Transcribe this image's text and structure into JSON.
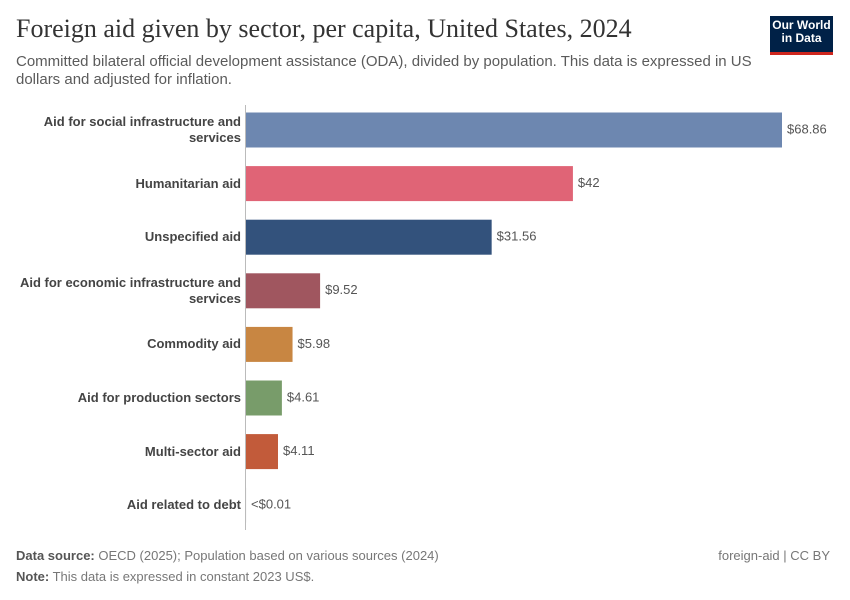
{
  "chart_data": {
    "type": "bar",
    "orientation": "horizontal",
    "title": "Foreign aid given by sector, per capita, United States, 2024",
    "subtitle": "Committed bilateral official development assistance (ODA), divided by population. This data is expressed in US dollars and adjusted for inflation.",
    "categories": [
      "Aid for social infrastructure and services",
      "Humanitarian aid",
      "Unspecified aid",
      "Aid for economic infrastructure and services",
      "Commodity aid",
      "Aid for production sectors",
      "Multi-sector aid",
      "Aid related to debt"
    ],
    "values": [
      68.86,
      42,
      31.56,
      9.52,
      5.98,
      4.61,
      4.11,
      0.004
    ],
    "value_labels": [
      "$68.86",
      "$42",
      "$31.56",
      "$9.52",
      "$5.98",
      "$4.61",
      "$4.11",
      "<$0.01"
    ],
    "colors": [
      "#6d87b0",
      "#e06476",
      "#33527c",
      "#a0565f",
      "#c88642",
      "#789c6a",
      "#c25b3a",
      "#6a6a6a"
    ],
    "source_label": "Data source:",
    "source": "OECD (2025); Population based on various sources (2024)",
    "note_label": "Note:",
    "note": "This data is expressed in constant 2023 US$.",
    "license": "foreign-aid | CC BY",
    "logo": "Our World in Data"
  }
}
